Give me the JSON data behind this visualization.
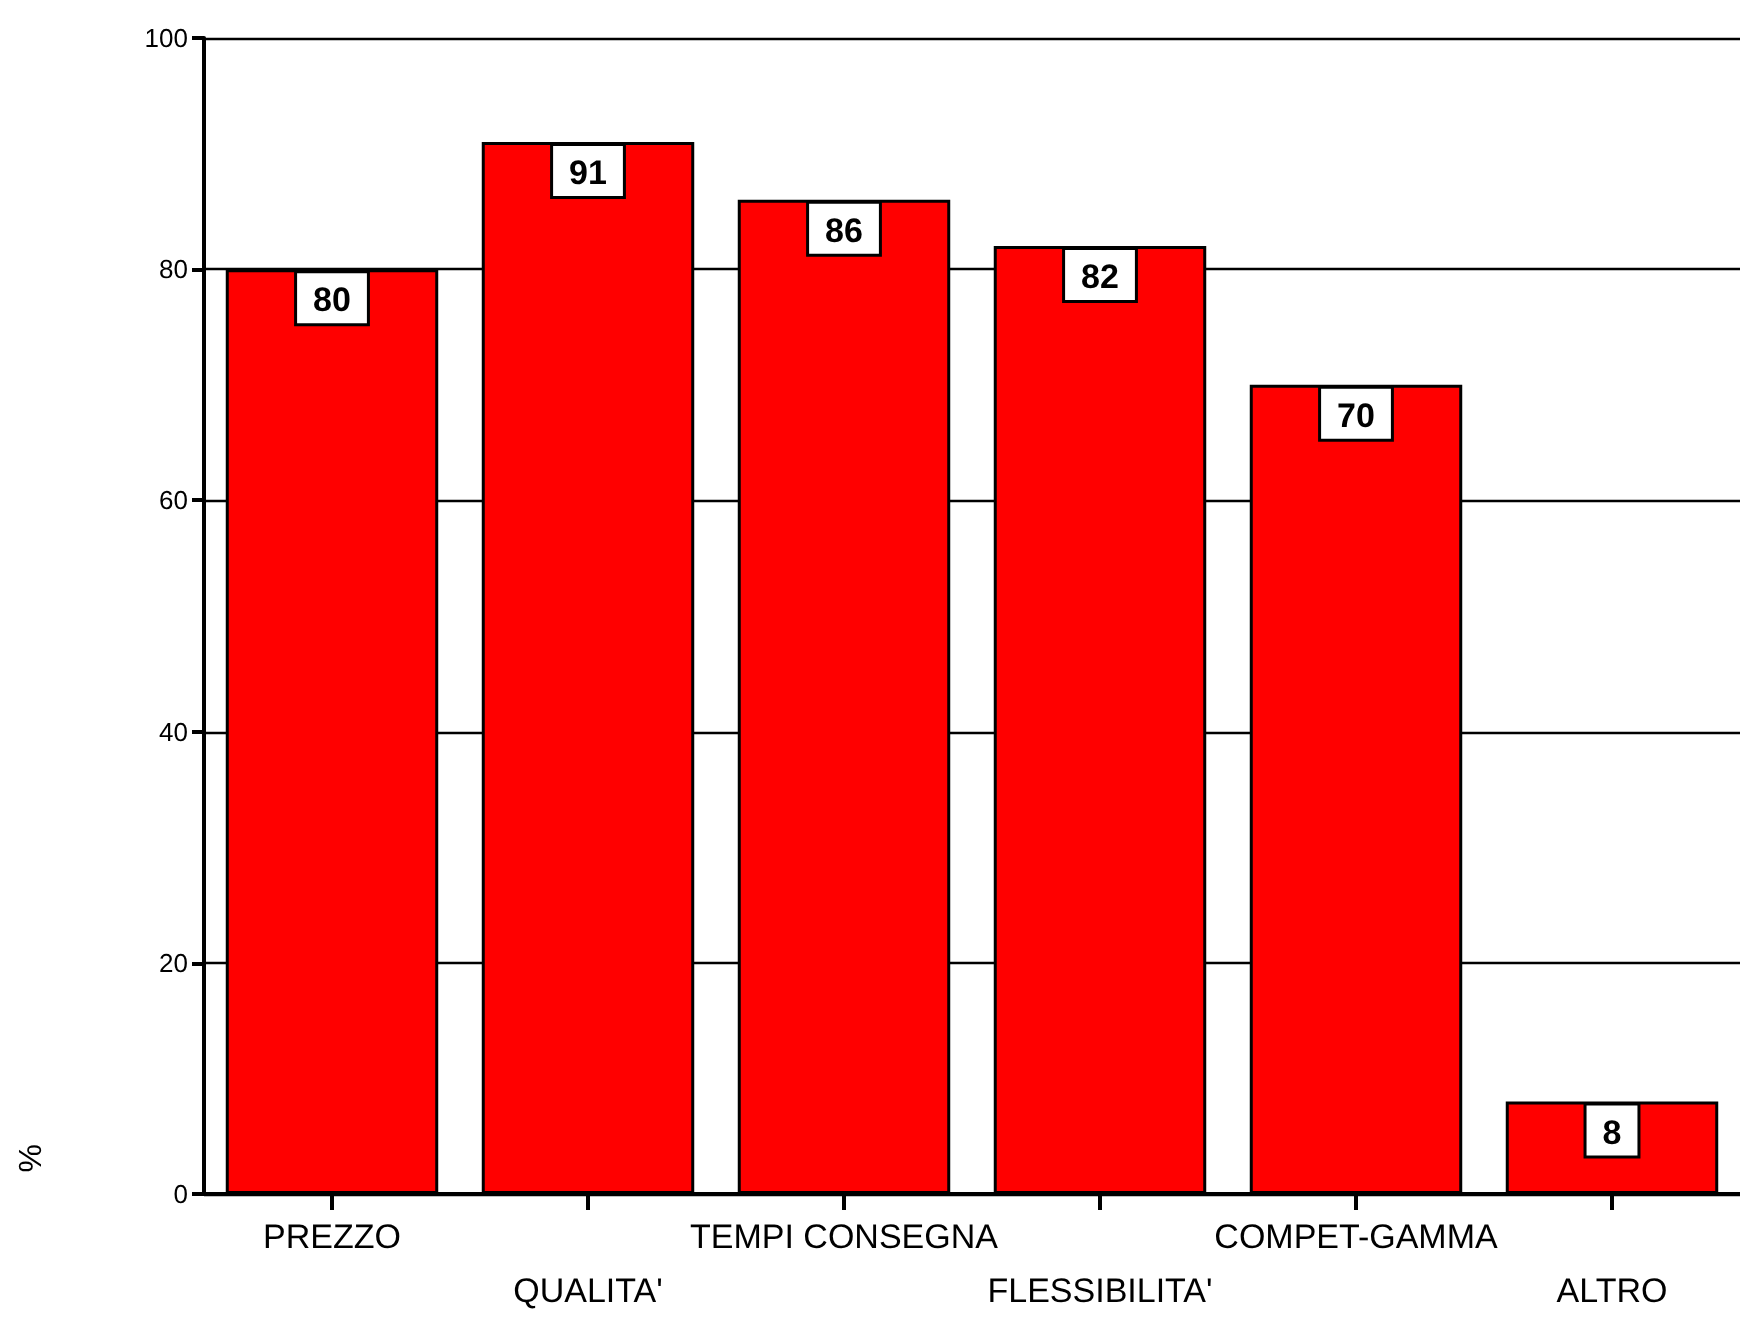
{
  "chart_data": {
    "type": "bar",
    "ylabel": "%",
    "categories": [
      "PREZZO",
      "QUALITA'",
      "TEMPI CONSEGNA",
      "FLESSIBILITA'",
      "COMPET-GAMMA",
      "ALTRO"
    ],
    "values": [
      80,
      91,
      86,
      82,
      70,
      8
    ],
    "color": "#ff0000",
    "ylim": [
      0,
      100
    ],
    "yticks": [
      0,
      20,
      40,
      60,
      80,
      100
    ],
    "grid": "y",
    "data_labels": true
  }
}
